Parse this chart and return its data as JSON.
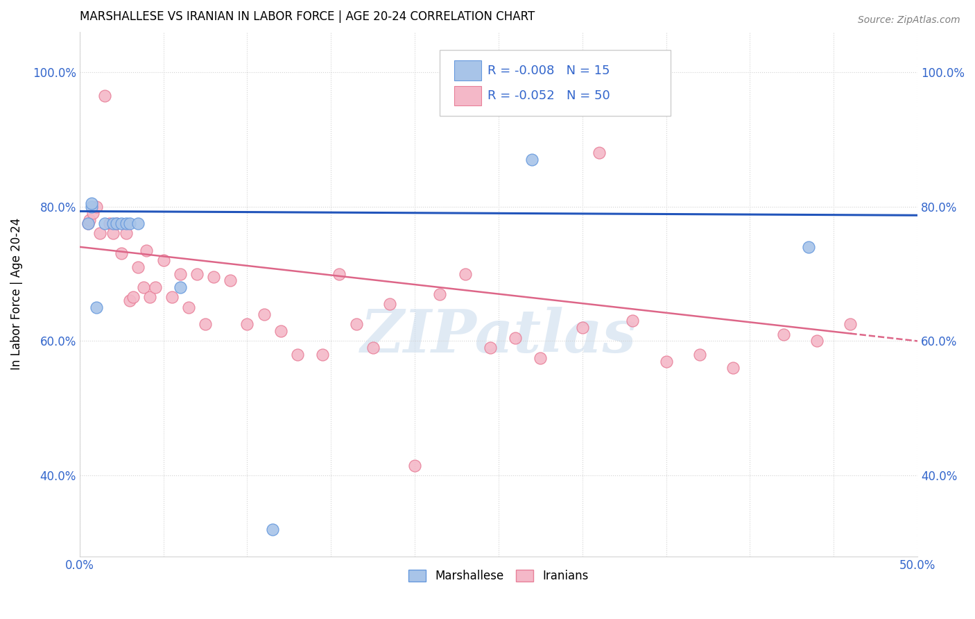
{
  "title": "MARSHALLESE VS IRANIAN IN LABOR FORCE | AGE 20-24 CORRELATION CHART",
  "source": "Source: ZipAtlas.com",
  "ylabel": "In Labor Force | Age 20-24",
  "xlim": [
    0.0,
    0.5
  ],
  "ylim": [
    0.28,
    1.06
  ],
  "xticks": [
    0.0,
    0.5
  ],
  "xtick_labels": [
    "0.0%",
    "50.0%"
  ],
  "yticks": [
    0.4,
    0.6,
    0.8,
    1.0
  ],
  "ytick_labels": [
    "40.0%",
    "60.0%",
    "80.0%",
    "100.0%"
  ],
  "blue_color": "#A8C4E8",
  "pink_color": "#F4B8C8",
  "blue_edge": "#6699DD",
  "pink_edge": "#E88099",
  "trend_blue": "#2255BB",
  "trend_pink": "#DD6688",
  "blue_R": "-0.008",
  "blue_N": "15",
  "pink_R": "-0.052",
  "pink_N": "50",
  "legend_label_blue": "Marshallese",
  "legend_label_pink": "Iranians",
  "watermark": "ZIPatlas",
  "blue_x": [
    0.005,
    0.007,
    0.007,
    0.01,
    0.015,
    0.02,
    0.022,
    0.025,
    0.028,
    0.03,
    0.035,
    0.06,
    0.115,
    0.27,
    0.435
  ],
  "blue_y": [
    0.775,
    0.8,
    0.805,
    0.65,
    0.775,
    0.775,
    0.775,
    0.775,
    0.775,
    0.775,
    0.775,
    0.68,
    0.32,
    0.87,
    0.74
  ],
  "pink_x": [
    0.005,
    0.006,
    0.008,
    0.01,
    0.012,
    0.015,
    0.018,
    0.02,
    0.022,
    0.025,
    0.028,
    0.03,
    0.032,
    0.035,
    0.038,
    0.04,
    0.042,
    0.045,
    0.05,
    0.055,
    0.06,
    0.065,
    0.07,
    0.075,
    0.08,
    0.09,
    0.1,
    0.11,
    0.12,
    0.13,
    0.145,
    0.155,
    0.165,
    0.175,
    0.185,
    0.2,
    0.215,
    0.23,
    0.245,
    0.26,
    0.275,
    0.3,
    0.31,
    0.33,
    0.35,
    0.37,
    0.39,
    0.42,
    0.44,
    0.46
  ],
  "pink_y": [
    0.775,
    0.78,
    0.79,
    0.8,
    0.76,
    0.965,
    0.775,
    0.76,
    0.775,
    0.73,
    0.76,
    0.66,
    0.665,
    0.71,
    0.68,
    0.735,
    0.665,
    0.68,
    0.72,
    0.665,
    0.7,
    0.65,
    0.7,
    0.625,
    0.695,
    0.69,
    0.625,
    0.64,
    0.615,
    0.58,
    0.58,
    0.7,
    0.625,
    0.59,
    0.655,
    0.415,
    0.67,
    0.7,
    0.59,
    0.605,
    0.575,
    0.62,
    0.88,
    0.63,
    0.57,
    0.58,
    0.56,
    0.61,
    0.6,
    0.625
  ],
  "trend_blue_intercept": 0.793,
  "trend_blue_slope": -0.012,
  "trend_pink_intercept": 0.74,
  "trend_pink_slope": -0.28
}
